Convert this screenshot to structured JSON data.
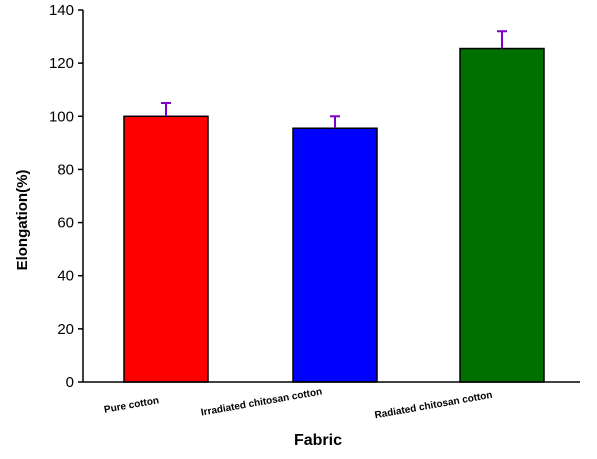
{
  "chart_data": {
    "type": "bar",
    "title": "",
    "xlabel": "Fabric",
    "ylabel": "Elongation(%)",
    "ylim": [
      0,
      140
    ],
    "yticks": [
      "0",
      "20",
      "40",
      "60",
      "80",
      "100",
      "120",
      "140"
    ],
    "categories": [
      "Pure cotton",
      "Irradiated chitosan cotton",
      "Radiated chitosan cotton"
    ],
    "values": [
      100,
      95.5,
      125.5
    ],
    "errors": [
      5,
      4.5,
      6.5
    ],
    "colors": [
      "#ff0000",
      "#0000ff",
      "#007000"
    ],
    "error_bar_color": "#7a00cc",
    "grid": false,
    "legend": "none"
  }
}
